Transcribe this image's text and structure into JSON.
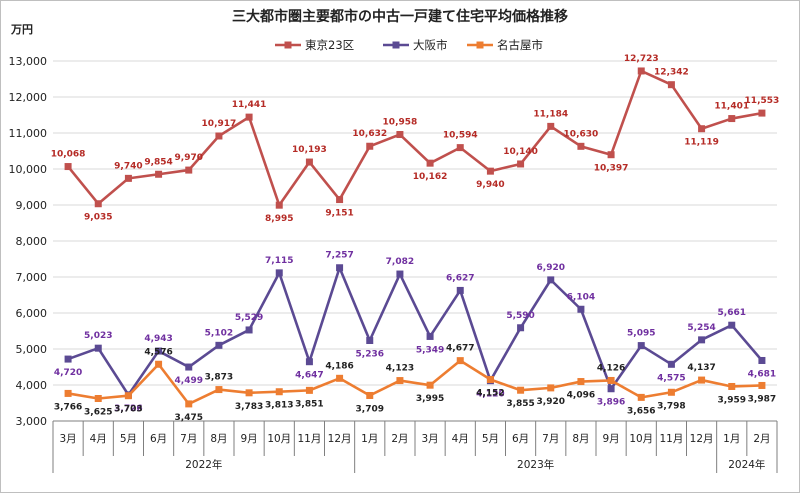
{
  "chart_data": {
    "type": "line",
    "title": "三大都市圏主要都市の中古一戸建て住宅平均価格推移",
    "ylabel": "万円",
    "ylim": [
      3000,
      13000
    ],
    "yticks": [
      "3,000",
      "4,000",
      "5,000",
      "6,000",
      "7,000",
      "8,000",
      "9,000",
      "10,000",
      "11,000",
      "12,000",
      "13,000"
    ],
    "categories": [
      "3月",
      "4月",
      "5月",
      "6月",
      "7月",
      "8月",
      "9月",
      "10月",
      "11月",
      "12月",
      "1月",
      "2月",
      "3月",
      "4月",
      "5月",
      "6月",
      "7月",
      "8月",
      "9月",
      "10月",
      "11月",
      "12月",
      "1月",
      "2月"
    ],
    "year_groups": [
      {
        "label": "2022年",
        "from": 0,
        "to": 9
      },
      {
        "label": "2023年",
        "from": 10,
        "to": 21
      },
      {
        "label": "2024年",
        "from": 22,
        "to": 23
      }
    ],
    "series": [
      {
        "name": "東京23区",
        "color": "#c0504d",
        "label_color": "#b52b26",
        "marker": "square",
        "values": [
          10068,
          9035,
          9740,
          9854,
          9970,
          10917,
          11441,
          8995,
          10193,
          9151,
          10632,
          10958,
          10162,
          10594,
          9940,
          10140,
          11184,
          10630,
          10397,
          12723,
          12342,
          11119,
          11401,
          11553
        ],
        "labels": [
          "10,068",
          "9,035",
          "9,740",
          "9,854",
          "9,970",
          "10,917",
          "11,441",
          "8,995",
          "10,193",
          "9,151",
          "10,632",
          "10,958",
          "10,162",
          "10,594",
          "9,940",
          "10,140",
          "11,184",
          "10,630",
          "10,397",
          "12,723",
          "12,342",
          "11,119",
          "11,401",
          "11,553"
        ]
      },
      {
        "name": "大阪市",
        "color": "#5b4a93",
        "label_color": "#7030a0",
        "marker": "square",
        "values": [
          4720,
          5023,
          3726,
          4943,
          4499,
          5102,
          5529,
          7115,
          4647,
          7257,
          5236,
          7082,
          5349,
          6627,
          4120,
          5590,
          6920,
          6104,
          3896,
          5095,
          4575,
          5254,
          5661,
          4681
        ],
        "labels": [
          "4,720",
          "5,023",
          "3,726",
          "4,943",
          "4,499",
          "5,102",
          "5,529",
          "7,115",
          "4,647",
          "7,257",
          "5,236",
          "7,082",
          "5,349",
          "6,627",
          "4,120",
          "5,590",
          "6,920",
          "6,104",
          "3,896",
          "5,095",
          "4,575",
          "5,254",
          "5,661",
          "4,681"
        ]
      },
      {
        "name": "名古屋市",
        "color": "#ed7d31",
        "label_color": "#222222",
        "marker": "square",
        "values": [
          3766,
          3625,
          3703,
          4576,
          3475,
          3873,
          3783,
          3813,
          3851,
          4186,
          3709,
          4123,
          3995,
          4677,
          4152,
          3855,
          3920,
          4096,
          4126,
          3656,
          3798,
          4137,
          3959,
          3987
        ],
        "labels": [
          "3,766",
          "3,625",
          "3,703",
          "4,576",
          "3,475",
          "3,873",
          "3,783",
          "3,813",
          "3,851",
          "4,186",
          "3,709",
          "4,123",
          "3,995",
          "4,677",
          "4,152",
          "3,855",
          "3,920",
          "4,096",
          "4,126",
          "3,656",
          "3,798",
          "4,137",
          "3,959",
          "3,987"
        ]
      }
    ],
    "legend_position": "top",
    "grid": true
  }
}
